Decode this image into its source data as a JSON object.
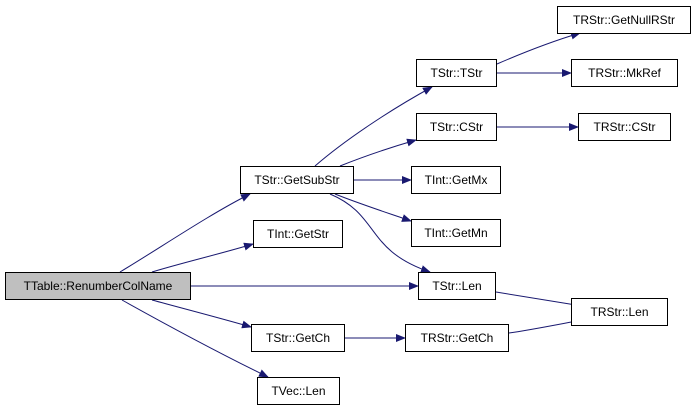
{
  "edge_color": "#191970",
  "root_fill": "#bfbfbf",
  "nodes": {
    "root": "TTable::RenumberColName",
    "getsubstr": "TStr::GetSubStr",
    "intgetstr": "TInt::GetStr",
    "strgetch": "TStr::GetCh",
    "veclen": "TVec::Len",
    "tstr": "TStr::TStr",
    "cstr": "TStr::CStr",
    "getmx": "TInt::GetMx",
    "getmn": "TInt::GetMn",
    "strlen": "TStr::Len",
    "rstrgetch": "TRStr::GetCh",
    "getnullrstr": "TRStr::GetNullRStr",
    "mkref": "TRStr::MkRef",
    "rstrcstr": "TRStr::CStr",
    "rstrlen": "TRStr::Len"
  },
  "edges": [
    [
      "root",
      "getsubstr"
    ],
    [
      "root",
      "intgetstr"
    ],
    [
      "root",
      "strlen"
    ],
    [
      "root",
      "strgetch"
    ],
    [
      "root",
      "veclen"
    ],
    [
      "getsubstr",
      "tstr"
    ],
    [
      "getsubstr",
      "cstr"
    ],
    [
      "getsubstr",
      "getmx"
    ],
    [
      "getsubstr",
      "getmn"
    ],
    [
      "getsubstr",
      "strlen"
    ],
    [
      "tstr",
      "getnullrstr"
    ],
    [
      "tstr",
      "mkref"
    ],
    [
      "cstr",
      "rstrcstr"
    ],
    [
      "strlen",
      "rstrlen"
    ],
    [
      "strgetch",
      "rstrgetch"
    ],
    [
      "rstrgetch",
      "rstrlen"
    ]
  ]
}
